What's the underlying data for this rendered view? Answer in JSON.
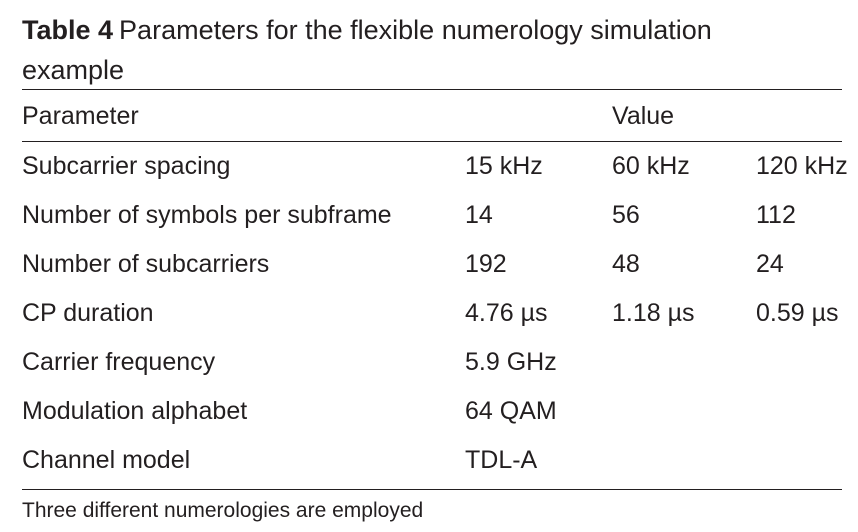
{
  "caption": {
    "label": "Table 4",
    "text": "Parameters for the flexible numerology simulation example"
  },
  "table": {
    "header": [
      "Parameter",
      "Value"
    ],
    "rows": [
      [
        "Subcarrier spacing",
        "15 kHz",
        "60 kHz",
        "120 kHz"
      ],
      [
        "Number of symbols per subframe",
        "14",
        "56",
        "112"
      ],
      [
        "Number of subcarriers",
        "192",
        "48",
        "24"
      ],
      [
        "CP duration",
        "4.76 µs",
        "1.18 µs",
        "0.59 µs"
      ],
      [
        "Carrier frequency",
        "5.9 GHz"
      ],
      [
        "Modulation alphabet",
        "64 QAM"
      ],
      [
        "Channel model",
        "TDL-A"
      ]
    ]
  },
  "footnote": "Three different numerologies are employed"
}
